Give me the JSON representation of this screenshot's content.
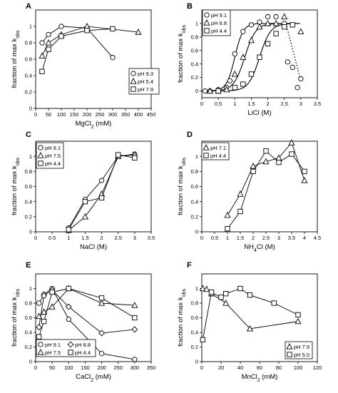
{
  "chart_data": [
    {
      "panel": "A",
      "type": "line",
      "xlabel": "MgCl",
      "xlabel_sub": "2",
      "xlabel_unit": " (mM)",
      "ylabel": "fraction of max k",
      "ylabel_sub": "obs",
      "xlim": [
        0,
        450
      ],
      "ylim": [
        0,
        1.2
      ],
      "xticks": [
        "0",
        "50",
        "100",
        "150",
        "200",
        "250",
        "300",
        "350",
        "400",
        "450"
      ],
      "yticks": [
        "0",
        "0.2",
        "0.4",
        "0.6",
        "0.8",
        "1"
      ],
      "legend_position": "bottom-right",
      "series": [
        {
          "name": "pH 9.3",
          "marker": "circle",
          "x": [
            25,
            50,
            100,
            200,
            300
          ],
          "y": [
            0.8,
            0.9,
            1.0,
            0.98,
            0.62
          ]
        },
        {
          "name": "pH 5.4",
          "marker": "triangle",
          "x": [
            25,
            50,
            100,
            200,
            400
          ],
          "y": [
            0.64,
            0.8,
            0.9,
            1.0,
            0.93
          ]
        },
        {
          "name": "pH 7.9",
          "marker": "square",
          "x": [
            25,
            50,
            100,
            200,
            300
          ],
          "y": [
            0.45,
            0.72,
            0.88,
            0.95,
            0.97
          ]
        }
      ]
    },
    {
      "panel": "B",
      "type": "scatter",
      "xlabel": "LiCl (M)",
      "ylabel": "fraction of max k",
      "ylabel_sub": "obs",
      "xlim": [
        0,
        3.5
      ],
      "ylim": [
        -0.1,
        1.2
      ],
      "xticks": [
        "0",
        "0.5",
        "1",
        "1.5",
        "2",
        "2.5",
        "3",
        "3.5"
      ],
      "yticks": [
        "0",
        "0.2",
        "0.4",
        "0.6",
        "0.8",
        "1"
      ],
      "legend_position": "top-left",
      "series": [
        {
          "name": "pH 9.1",
          "marker": "circle",
          "x": [
            0.1,
            0.25,
            0.5,
            0.75,
            0.85,
            1.0,
            1.25,
            1.5,
            1.75,
            2.0,
            2.25,
            2.5,
            2.6,
            2.75,
            2.9,
            3.0
          ],
          "y": [
            0,
            0,
            0.02,
            0.05,
            0.15,
            0.55,
            0.88,
            0.98,
            1.02,
            1.1,
            1.1,
            1.0,
            0.43,
            0.35,
            0.05,
            0.18
          ]
        },
        {
          "name": "pH 6.8",
          "marker": "triangle",
          "x": [
            0.25,
            0.5,
            0.75,
            1.0,
            1.25,
            1.5,
            1.75,
            2.0,
            2.25,
            2.5,
            3.0
          ],
          "y": [
            0,
            0,
            0.02,
            0.25,
            0.5,
            0.75,
            0.95,
            1.0,
            1.0,
            1.1,
            0.88
          ]
        },
        {
          "name": "pH 4.4",
          "marker": "square",
          "x": [
            0.5,
            1.0,
            1.25,
            1.5,
            1.75,
            2.0,
            2.25,
            2.5,
            2.75
          ],
          "y": [
            0,
            0.05,
            0.1,
            0.25,
            0.5,
            0.7,
            0.85,
            0.95,
            0.98
          ]
        }
      ],
      "fit_curves": [
        {
          "midpoint": 1.0,
          "steepness": 8.0,
          "x_end": 2.6
        },
        {
          "midpoint": 1.3,
          "steepness": 6.0,
          "x_end": 3.0
        },
        {
          "midpoint": 1.75,
          "steepness": 6.0,
          "x_end": 3.0
        }
      ],
      "dotted_segment": {
        "x": [
          2.55,
          3.0
        ],
        "y": [
          1.0,
          0.15
        ]
      }
    },
    {
      "panel": "C",
      "type": "line",
      "xlabel": "NaCl (M)",
      "ylabel": "fraction of max k",
      "ylabel_sub": "obs",
      "xlim": [
        0,
        3.5
      ],
      "ylim": [
        0,
        1.2
      ],
      "xticks": [
        "0",
        "0.5",
        "1",
        "1.5",
        "2",
        "2.5",
        "3",
        "3.5"
      ],
      "yticks": [
        "0",
        "0.2",
        "0.4",
        "0.6",
        "0.8",
        "1"
      ],
      "legend_position": "top-left",
      "series": [
        {
          "name": "pH 9.1",
          "marker": "circle",
          "x": [
            1.0,
            1.5,
            2.0,
            2.5,
            3.0
          ],
          "y": [
            0.05,
            0.43,
            0.68,
            1.0,
            1.03
          ]
        },
        {
          "name": "pH 7.5",
          "marker": "triangle",
          "x": [
            1.0,
            1.5,
            2.0,
            2.5,
            3.0
          ],
          "y": [
            0.02,
            0.2,
            0.5,
            1.0,
            1.02
          ]
        },
        {
          "name": "pH 4.4",
          "marker": "square",
          "x": [
            1.0,
            1.5,
            2.0,
            2.5,
            3.0
          ],
          "y": [
            0.03,
            0.4,
            0.45,
            1.02,
            0.98
          ]
        }
      ]
    },
    {
      "panel": "D",
      "type": "line",
      "xlabel": "NH",
      "xlabel_sub": "4",
      "xlabel_unit": "Cl (M)",
      "ylabel": "fraction of max k",
      "ylabel_sub": "obs",
      "xlim": [
        0,
        4.5
      ],
      "ylim": [
        0,
        1.2
      ],
      "xticks": [
        "0",
        "0.5",
        "1",
        "1.5",
        "2",
        "2.5",
        "3",
        "3.5",
        "4",
        "4.5"
      ],
      "yticks": [
        "0",
        "0.2",
        "0.4",
        "0.6",
        "0.8",
        "1"
      ],
      "legend_position": "top-left",
      "series": [
        {
          "name": "pH 7.1",
          "marker": "triangle",
          "x": [
            1.0,
            1.5,
            2.0,
            2.5,
            3.0,
            3.5,
            4.0
          ],
          "y": [
            0.22,
            0.5,
            0.87,
            0.93,
            0.98,
            1.18,
            0.68
          ]
        },
        {
          "name": "pH 4.4",
          "marker": "square",
          "x": [
            1.0,
            1.5,
            2.0,
            2.5,
            3.0,
            3.5,
            4.0
          ],
          "y": [
            0.04,
            0.27,
            0.8,
            1.07,
            0.92,
            1.03,
            0.8
          ]
        }
      ]
    },
    {
      "panel": "E",
      "type": "line",
      "xlabel": "CaCl",
      "xlabel_sub": "2",
      "xlabel_unit": " (mM)",
      "ylabel": "fraction of max k",
      "ylabel_sub": "obs",
      "xlim": [
        0,
        350
      ],
      "ylim": [
        0,
        1.2
      ],
      "xticks": [
        "0",
        "50",
        "100",
        "150",
        "200",
        "250",
        "300",
        "350"
      ],
      "yticks": [
        "0",
        "0.2",
        "0.4",
        "0.6",
        "0.8",
        "1"
      ],
      "legend_position": "bottom-left",
      "series": [
        {
          "name": "pH 9.1",
          "marker": "circle",
          "x": [
            10,
            25,
            50,
            100,
            200,
            300
          ],
          "y": [
            0.8,
            0.92,
            1.0,
            0.58,
            0.11,
            0.03
          ]
        },
        {
          "name": "pH 8.8",
          "marker": "diamond",
          "x": [
            10,
            25,
            50,
            100,
            200,
            300
          ],
          "y": [
            0.47,
            0.9,
            0.98,
            0.75,
            0.39,
            0.44
          ]
        },
        {
          "name": "pH 7.5",
          "marker": "triangle",
          "x": [
            10,
            25,
            50,
            100,
            200,
            300
          ],
          "y": [
            0.62,
            0.68,
            0.75,
            1.0,
            0.8,
            0.77
          ]
        },
        {
          "name": "pH 4.4",
          "marker": "square",
          "x": [
            10,
            25,
            50,
            100,
            200,
            300
          ],
          "y": [
            0.34,
            0.55,
            0.95,
            1.0,
            0.87,
            0.6
          ]
        }
      ]
    },
    {
      "panel": "F",
      "type": "line",
      "xlabel": "MnCl",
      "xlabel_sub": "2",
      "xlabel_unit": " (mM)",
      "ylabel": "fraction of max k",
      "ylabel_sub": "obs",
      "xlim": [
        0,
        120
      ],
      "ylim": [
        0,
        1.2
      ],
      "xticks": [
        "0",
        "20",
        "40",
        "60",
        "80",
        "100",
        "120"
      ],
      "yticks": [
        "0",
        "0.2",
        "0.4",
        "0.6",
        "0.8",
        "1"
      ],
      "legend_position": "bottom-right",
      "series": [
        {
          "name": "pH 7.9",
          "marker": "triangle",
          "x": [
            1,
            5,
            10,
            25,
            50,
            100
          ],
          "y": [
            1.0,
            0.99,
            0.93,
            0.8,
            0.45,
            0.55
          ]
        },
        {
          "name": "pH 5.0",
          "marker": "square",
          "x": [
            1,
            10,
            20,
            25,
            40,
            50,
            75,
            100
          ],
          "y": [
            0.3,
            0.95,
            0.88,
            0.93,
            1.0,
            0.91,
            0.8,
            0.64
          ]
        }
      ]
    }
  ]
}
